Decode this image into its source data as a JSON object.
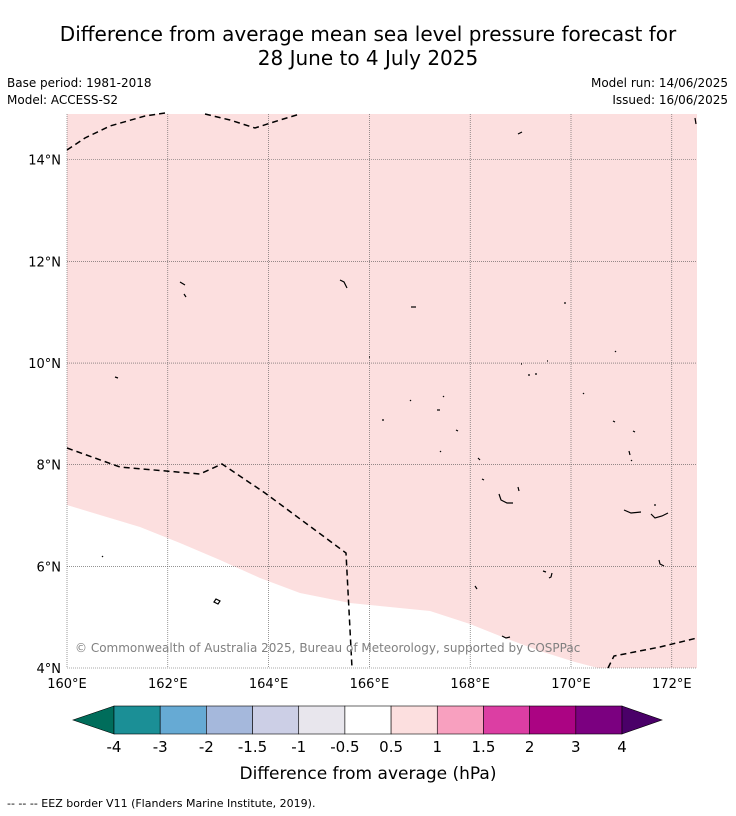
{
  "title": {
    "line1": "Difference from average mean sea level pressure forecast for",
    "line2": "28 June to 4 July 2025"
  },
  "meta": {
    "base_period": "Base period: 1981-2018",
    "model": "Model: ACCESS-S2",
    "model_run": "Model run: 14/06/2025",
    "issued": "Issued: 16/06/2025"
  },
  "map": {
    "lon_ticks": [
      "160°E",
      "162°E",
      "164°E",
      "166°E",
      "168°E",
      "170°E",
      "172°E"
    ],
    "lat_ticks": [
      "4°N",
      "6°N",
      "8°N",
      "10°N",
      "12°N",
      "14°N"
    ],
    "lon_range": [
      160,
      172.5
    ],
    "lat_range": [
      4,
      14.9
    ],
    "copyright": "© Commonwealth of Australia 2025, Bureau of Meteorology, supported by COSPPac",
    "field_colors": {
      "low_band": "#ffffff",
      "high_band": "#fcdfdf"
    }
  },
  "colorbar": {
    "label": "Difference from average (hPa)",
    "tick_labels": [
      "-4",
      "-3",
      "-2",
      "-1.5",
      "-1",
      "-0.5",
      "0.5",
      "1",
      "1.5",
      "2",
      "3",
      "4"
    ],
    "colors": [
      "#006d5b",
      "#1b8f96",
      "#66aad4",
      "#a5b8dc",
      "#cccfe6",
      "#e8e6ed",
      "#ffffff",
      "#fcdfdf",
      "#f8a0bf",
      "#dc3ea3",
      "#ab0483",
      "#7b0080",
      "#4a0068"
    ]
  },
  "footnote": "--  --  -- EEZ border V11 (Flanders Marine Institute, 2019)."
}
